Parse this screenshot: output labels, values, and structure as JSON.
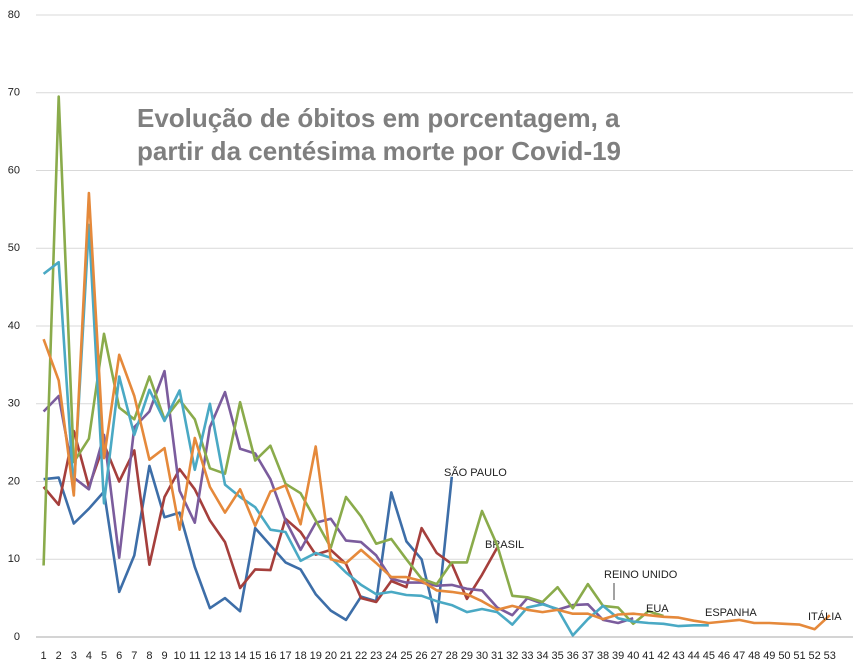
{
  "chart_data": {
    "type": "line",
    "title": [
      "Evolução de óbitos em porcentagem, a",
      "partir da centésima morte por Covid-19"
    ],
    "categories": [
      1,
      2,
      3,
      4,
      5,
      6,
      7,
      8,
      9,
      10,
      11,
      12,
      13,
      14,
      15,
      16,
      17,
      18,
      19,
      20,
      21,
      22,
      23,
      24,
      25,
      26,
      27,
      28,
      29,
      30,
      31,
      32,
      33,
      34,
      35,
      36,
      37,
      38,
      39,
      40,
      41,
      42,
      43,
      44,
      45,
      46,
      47,
      48,
      49,
      50,
      51,
      52,
      53
    ],
    "ylim": [
      0,
      80
    ],
    "yticks": [
      0,
      10,
      20,
      30,
      40,
      50,
      60,
      70,
      80
    ],
    "grid": true,
    "series": [
      {
        "name": "SÃO PAULO",
        "color": "#3d6ea8",
        "values": [
          20.3,
          20.5,
          14.6,
          16.5,
          18.7,
          5.8,
          10.5,
          22,
          15.4,
          16,
          9,
          3.7,
          5,
          3.3,
          14,
          11.8,
          9.6,
          8.7,
          5.5,
          3.4,
          2.2,
          5.2,
          4.6,
          18.6,
          12.3,
          10,
          1.9,
          20.6,
          null,
          null,
          null,
          null,
          null,
          null,
          null,
          null,
          null,
          null,
          null,
          null,
          null,
          null,
          null,
          null,
          null,
          null,
          null,
          null,
          null,
          null,
          null,
          null,
          null
        ]
      },
      {
        "name": "BRASIL",
        "color": "#a53f3c",
        "values": [
          19.3,
          17,
          26.5,
          19.3,
          24.8,
          20,
          24,
          9.3,
          18,
          21.6,
          19,
          15,
          12.2,
          6.3,
          8.7,
          8.6,
          15.2,
          13.5,
          10.6,
          11.2,
          9.4,
          5,
          4.5,
          7.2,
          6.4,
          14,
          10.8,
          9.4,
          4.9,
          8,
          11.5,
          null,
          null,
          null,
          null,
          null,
          null,
          null,
          null,
          null,
          null,
          null,
          null,
          null,
          null,
          null,
          null,
          null,
          null,
          null,
          null,
          null,
          null
        ]
      },
      {
        "name": "REINO UNIDO",
        "color": "#7b5c9d",
        "values": [
          29,
          31,
          20.5,
          19,
          26,
          10.2,
          27,
          29,
          34.2,
          18.8,
          14.7,
          27,
          31.5,
          24.2,
          23.6,
          20.3,
          15,
          11.2,
          14.7,
          15.2,
          12.4,
          12.2,
          10.5,
          7.5,
          7,
          7,
          6.6,
          6.7,
          6.2,
          6,
          3.8,
          2.8,
          5,
          4.3,
          3.5,
          4.1,
          4.2,
          2.2,
          1.8,
          2.4,
          null,
          null,
          null,
          null,
          null,
          null,
          null,
          null,
          null,
          null,
          null,
          null,
          null
        ]
      },
      {
        "name": "EUA",
        "color": "#8aab4b",
        "values": [
          9.2,
          69.5,
          22.5,
          25.5,
          39,
          29.5,
          28,
          33.5,
          28,
          30.5,
          28,
          21.7,
          21,
          30.2,
          22.7,
          24.6,
          19.7,
          18.5,
          15,
          11.5,
          18,
          15.5,
          12,
          12.6,
          10,
          7.5,
          6.8,
          9.6,
          9.6,
          16.2,
          11.8,
          5.3,
          5.1,
          4.5,
          6.4,
          3.7,
          6.8,
          4,
          3.8,
          1.7,
          3.3,
          2.7,
          null,
          null,
          null,
          null,
          null,
          null,
          null,
          null,
          null,
          null,
          null
        ]
      },
      {
        "name": "ESPANHA",
        "color": "#4aa9c4",
        "values": [
          46.7,
          48.2,
          18.8,
          53,
          17.2,
          33.5,
          26,
          31.8,
          27.8,
          31.7,
          21.5,
          30,
          19.6,
          18,
          16.7,
          13.8,
          13.5,
          9.8,
          10.8,
          10.2,
          8.3,
          6.7,
          5.5,
          5.8,
          5.4,
          5.3,
          4.6,
          4.1,
          3.2,
          3.6,
          3.2,
          1.6,
          3.8,
          4.2,
          3.6,
          0.2,
          2.3,
          4,
          2.4,
          2,
          1.8,
          1.7,
          1.4,
          1.5,
          1.5,
          null,
          null,
          null,
          null,
          null,
          null,
          null,
          null
        ]
      },
      {
        "name": "ITÁLIA",
        "color": "#e5893b",
        "values": [
          38.3,
          33,
          18.2,
          57.1,
          23,
          36.3,
          31,
          22.8,
          24.3,
          13.8,
          25.6,
          19.3,
          16,
          19,
          14.3,
          18.7,
          19.5,
          14.5,
          24.5,
          10,
          9.5,
          11.2,
          9.5,
          7.7,
          7.7,
          7.2,
          6,
          5.8,
          5.5,
          4.6,
          3.5,
          4,
          3.5,
          3.2,
          3.5,
          3,
          3,
          2.3,
          2.9,
          3,
          2.8,
          2.6,
          2.5,
          2.1,
          1.8,
          2,
          2.2,
          1.8,
          1.8,
          1.7,
          1.6,
          1,
          2.8
        ]
      }
    ]
  }
}
